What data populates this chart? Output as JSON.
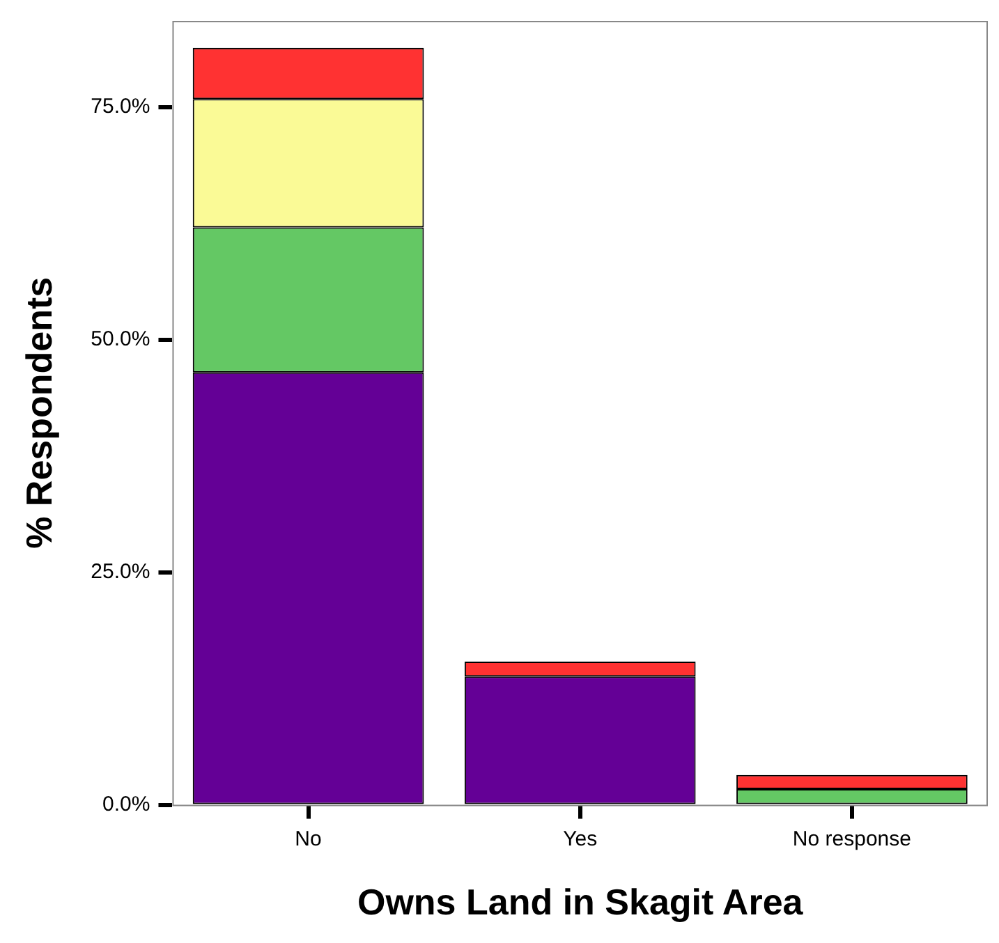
{
  "chart_data": {
    "type": "bar",
    "xlabel": "Owns Land in Skagit Area",
    "ylabel": "% Respondents",
    "categories": [
      "No",
      "Yes",
      "No response"
    ],
    "stacked": true,
    "series": [
      {
        "color": "#640096",
        "values": [
          46.5,
          13.8,
          0
        ]
      },
      {
        "color": "#64c864",
        "values": [
          15.6,
          0,
          1.7
        ]
      },
      {
        "color": "#fafa96",
        "values": [
          13.8,
          0,
          0
        ]
      },
      {
        "color": "#ff3232",
        "values": [
          5.5,
          1.6,
          1.5
        ]
      }
    ],
    "ylim": [
      0,
      84.3
    ],
    "yticks": [
      {
        "value": 0,
        "label": "0.0%"
      },
      {
        "value": 25,
        "label": "25.0%"
      },
      {
        "value": 50,
        "label": "50.0%"
      },
      {
        "value": 75,
        "label": "75.0%"
      }
    ],
    "grid": false,
    "legend": false
  }
}
